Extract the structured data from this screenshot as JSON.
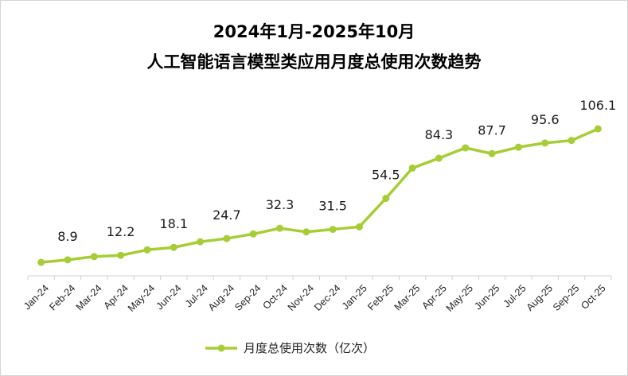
{
  "colors": {
    "series": "#a7cd34",
    "axis": "#d0d0d0"
  },
  "chart_data": {
    "type": "line",
    "title": "2024年1月-2025年10月",
    "subtitle": "人工智能语言模型类应用月度总使用次数趋势",
    "categories": [
      "Jan-24",
      "Feb-24",
      "Mar-24",
      "Apr-24",
      "May-24",
      "Jun-24",
      "Jul-24",
      "Aug-24",
      "Sep-24",
      "Oct-24",
      "Nov-24",
      "Dec-24",
      "Jan-25",
      "Feb-25",
      "Mar-25",
      "Apr-25",
      "May-25",
      "Jun-25",
      "Jul-25",
      "Aug-25",
      "Sep-25",
      "Oct-25"
    ],
    "series": [
      {
        "name": "月度总使用次数（亿次）",
        "values": [
          7.0,
          8.9,
          11.3,
          12.2,
          16.3,
          18.1,
          22.3,
          24.7,
          28.1,
          32.3,
          29.6,
          31.5,
          33.4,
          54.5,
          77.0,
          84.3,
          92.0,
          87.7,
          92.5,
          95.6,
          97.5,
          106.1
        ],
        "labels": [
          "",
          "8.9",
          "",
          "12.2",
          "",
          "18.1",
          "",
          "24.7",
          "",
          "32.3",
          "",
          "31.5",
          "",
          "54.5",
          "",
          "84.3",
          "",
          "87.7",
          "",
          "95.6",
          "",
          "106.1"
        ]
      }
    ],
    "ylim": [
      -3,
      128
    ],
    "grid": false,
    "legend": "bottom"
  }
}
